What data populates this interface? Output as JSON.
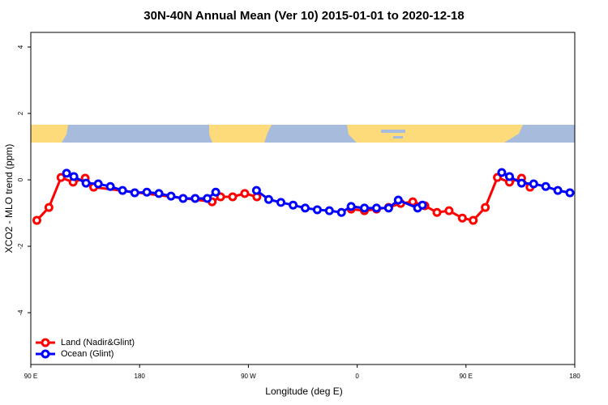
{
  "chart_data": {
    "type": "line",
    "title": "30N-40N Annual Mean (Ver 10)   2015-01-01 to 2020-12-18",
    "x_label": "Longitude (deg E)",
    "y_label": "XCO2 - MLO trend (ppm)",
    "xlim": [
      90,
      540
    ],
    "xticks": [
      {
        "value": 90,
        "label": "90 E"
      },
      180,
      {
        "value": 270,
        "label": "90 W"
      },
      {
        "value": 360,
        "label": "0"
      },
      {
        "value": 450,
        "label": "90 E"
      },
      {
        "value": 540,
        "label": "180"
      }
    ],
    "ylim": [
      -5.56,
      4.44
    ],
    "yticks": [
      -4,
      -2,
      0,
      2,
      4
    ],
    "legend": "bottom-left",
    "series": [
      {
        "name": "Land (Nadir&Glint)",
        "color": "#ff0000",
        "x": [
          95,
          105,
          115,
          125,
          135,
          142,
          240,
          247,
          257,
          267,
          277,
          null,
          355,
          366,
          376,
          386,
          396,
          406,
          416,
          426,
          436,
          447,
          456,
          466,
          476,
          486,
          496,
          503
        ],
        "values": [
          -1.22,
          -0.83,
          0.07,
          -0.07,
          0.05,
          -0.22,
          -0.66,
          -0.51,
          -0.51,
          -0.41,
          -0.51,
          null,
          -0.88,
          -0.93,
          -0.88,
          -0.83,
          -0.71,
          -0.66,
          -0.78,
          -0.98,
          -0.93,
          -1.15,
          -1.22,
          -0.83,
          0.07,
          -0.07,
          0.05,
          -0.22
        ]
      },
      {
        "name": "Ocean (Glint)",
        "color": "#0000ff",
        "x": [
          119.6,
          125.6,
          135.7,
          145.8,
          155.8,
          165.9,
          176,
          186,
          196,
          206,
          216,
          226,
          236,
          243,
          null,
          276.7,
          286.8,
          296.9,
          307,
          317,
          327,
          337,
          347,
          355,
          366,
          376,
          386,
          394,
          410,
          414,
          null,
          479.6,
          486,
          496,
          506,
          516,
          526,
          536
        ],
        "values": [
          0.2,
          0.1,
          -0.1,
          -0.12,
          -0.2,
          -0.32,
          -0.39,
          -0.37,
          -0.41,
          -0.49,
          -0.56,
          -0.56,
          -0.56,
          -0.37,
          null,
          -0.32,
          -0.59,
          -0.68,
          -0.76,
          -0.85,
          -0.9,
          -0.93,
          -0.98,
          -0.8,
          -0.85,
          -0.85,
          -0.85,
          -0.61,
          -0.85,
          -0.76,
          null,
          0.22,
          0.1,
          -0.1,
          -0.12,
          -0.2,
          -0.32,
          -0.39
        ]
      }
    ]
  }
}
